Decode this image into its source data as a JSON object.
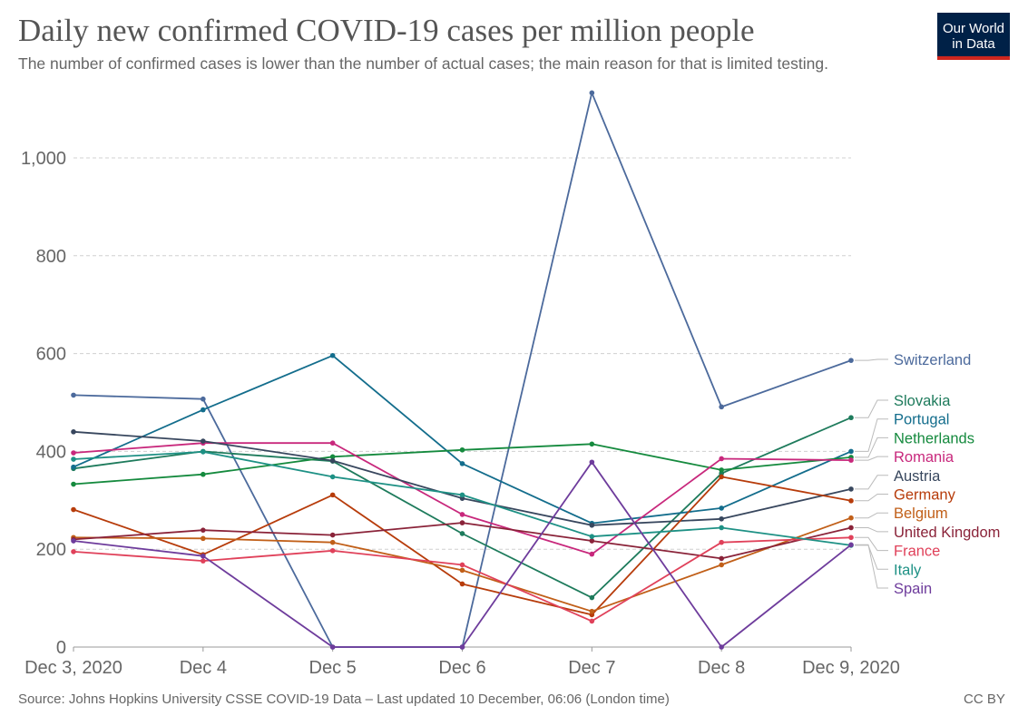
{
  "title": "Daily new confirmed COVID-19 cases per million people",
  "subtitle": "The number of confirmed cases is lower than the number of actual cases; the main reason for that is limited testing.",
  "logo": {
    "line1": "Our World",
    "line2": "in Data"
  },
  "footer": {
    "source": "Source: Johns Hopkins University CSSE COVID-19 Data – Last updated 10 December, 06:06 (London time)",
    "license": "CC BY"
  },
  "chart_data": {
    "type": "line",
    "title": "Daily new confirmed COVID-19 cases per million people",
    "xlabel": "",
    "ylabel": "",
    "categories": [
      "Dec 3, 2020",
      "Dec 4",
      "Dec 5",
      "Dec 6",
      "Dec 7",
      "Dec 8",
      "Dec 9, 2020"
    ],
    "ylim": [
      0,
      1150
    ],
    "yticks": [
      0,
      200,
      400,
      600,
      800,
      1000
    ],
    "ytick_labels": [
      "0",
      "200",
      "400",
      "600",
      "800",
      "1,000"
    ],
    "grid": true,
    "legend_position": "right, labels at line ends",
    "series": [
      {
        "name": "Switzerland",
        "color": "#4c6a9c",
        "values": [
          515,
          507,
          0,
          0,
          1133,
          491,
          586
        ]
      },
      {
        "name": "Slovakia",
        "color": "#1e7b5c",
        "values": [
          365,
          400,
          380,
          232,
          101,
          355,
          469
        ]
      },
      {
        "name": "Portugal",
        "color": "#136d8c",
        "values": [
          368,
          485,
          596,
          375,
          253,
          284,
          400
        ]
      },
      {
        "name": "Netherlands",
        "color": "#158a3e",
        "values": [
          333,
          353,
          389,
          403,
          415,
          362,
          388
        ]
      },
      {
        "name": "Romania",
        "color": "#c8287c",
        "values": [
          397,
          417,
          417,
          271,
          190,
          385,
          382
        ]
      },
      {
        "name": "Austria",
        "color": "#38475e",
        "values": [
          440,
          421,
          381,
          304,
          249,
          262,
          323
        ]
      },
      {
        "name": "Germany",
        "color": "#b73c0b",
        "values": [
          281,
          189,
          311,
          129,
          66,
          348,
          299
        ]
      },
      {
        "name": "Belgium",
        "color": "#c15f18",
        "values": [
          224,
          222,
          214,
          157,
          73,
          168,
          264
        ]
      },
      {
        "name": "United Kingdom",
        "color": "#8a2339",
        "values": [
          220,
          239,
          229,
          254,
          217,
          181,
          244
        ]
      },
      {
        "name": "France",
        "color": "#e0415a",
        "values": [
          195,
          176,
          197,
          168,
          53,
          214,
          224
        ]
      },
      {
        "name": "Italy",
        "color": "#1e9185",
        "values": [
          384,
          399,
          348,
          311,
          226,
          244,
          208
        ]
      },
      {
        "name": "Spain",
        "color": "#6e3c9c",
        "values": [
          217,
          186,
          0,
          0,
          378,
          0,
          209
        ]
      }
    ]
  }
}
